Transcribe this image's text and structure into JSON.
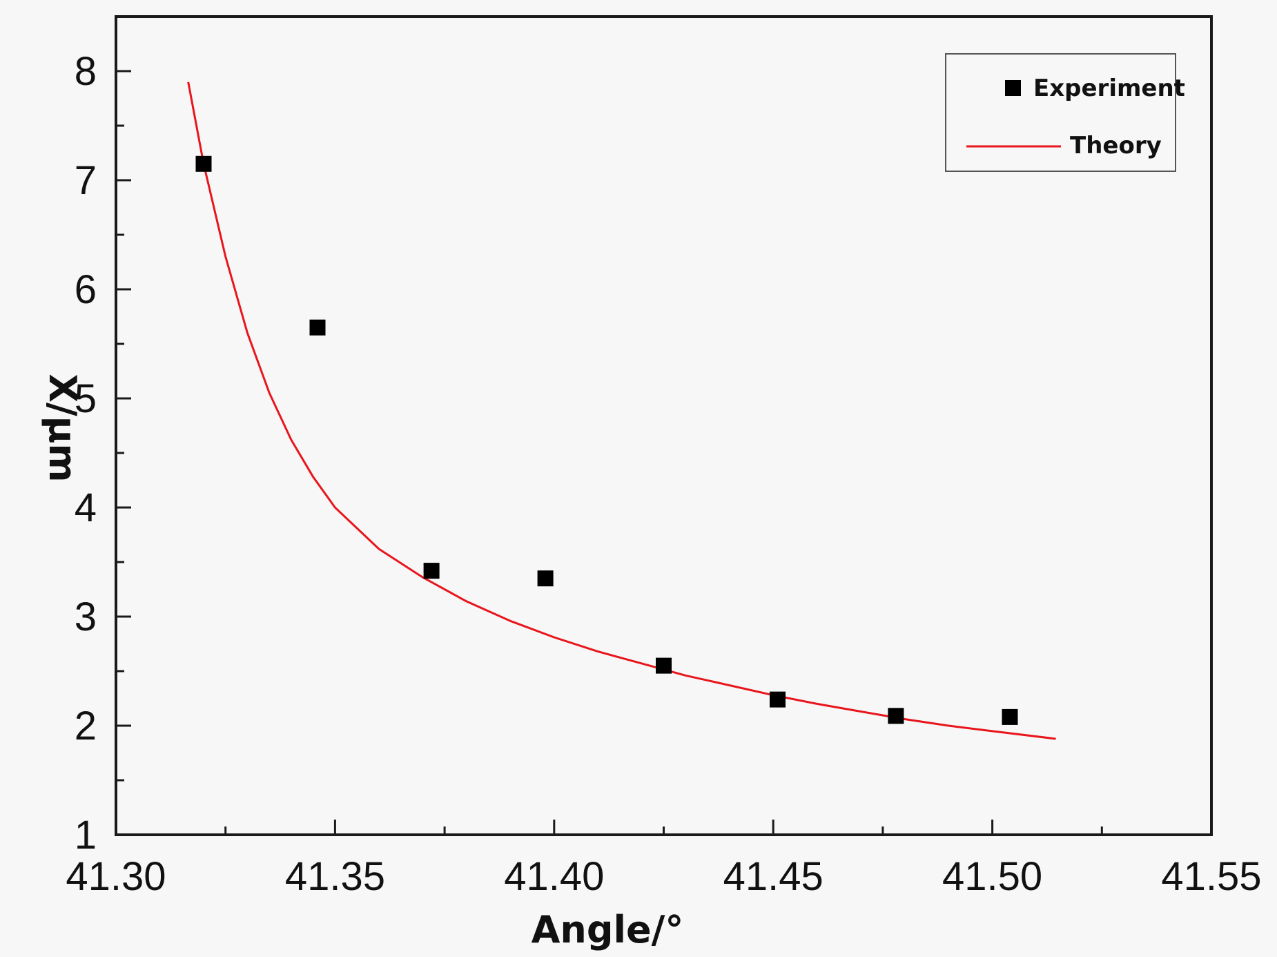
{
  "chart_data": {
    "type": "scatter",
    "title": "",
    "xlabel": "Angle/°",
    "ylabel": "X/μm",
    "xlim": [
      41.3,
      41.55
    ],
    "ylim": [
      1,
      8.5
    ],
    "x_ticks": [
      "41.30",
      "41.35",
      "41.40",
      "41.45",
      "41.50",
      "41.55"
    ],
    "y_ticks": [
      "1",
      "2",
      "3",
      "4",
      "5",
      "6",
      "7",
      "8"
    ],
    "grid": false,
    "legend_position": "top-right",
    "series": [
      {
        "name": "Experiment",
        "kind": "scatter",
        "marker": "square",
        "color": "#000000",
        "x": [
          41.32,
          41.346,
          41.372,
          41.398,
          41.425,
          41.451,
          41.478,
          41.504
        ],
        "y": [
          7.15,
          5.65,
          3.42,
          3.35,
          2.55,
          2.24,
          2.09,
          2.08
        ]
      },
      {
        "name": "Theory",
        "kind": "line",
        "color": "#e8161c",
        "x": [
          41.3165,
          41.32,
          41.325,
          41.33,
          41.335,
          41.34,
          41.345,
          41.35,
          41.36,
          41.37,
          41.38,
          41.39,
          41.4,
          41.41,
          41.42,
          41.43,
          41.44,
          41.45,
          41.46,
          41.47,
          41.48,
          41.49,
          41.5,
          41.5145
        ],
        "y": [
          7.9,
          7.15,
          6.3,
          5.6,
          5.05,
          4.62,
          4.28,
          4.0,
          3.62,
          3.36,
          3.14,
          2.96,
          2.81,
          2.68,
          2.57,
          2.46,
          2.37,
          2.28,
          2.2,
          2.13,
          2.06,
          2.0,
          1.95,
          1.88
        ]
      }
    ]
  }
}
